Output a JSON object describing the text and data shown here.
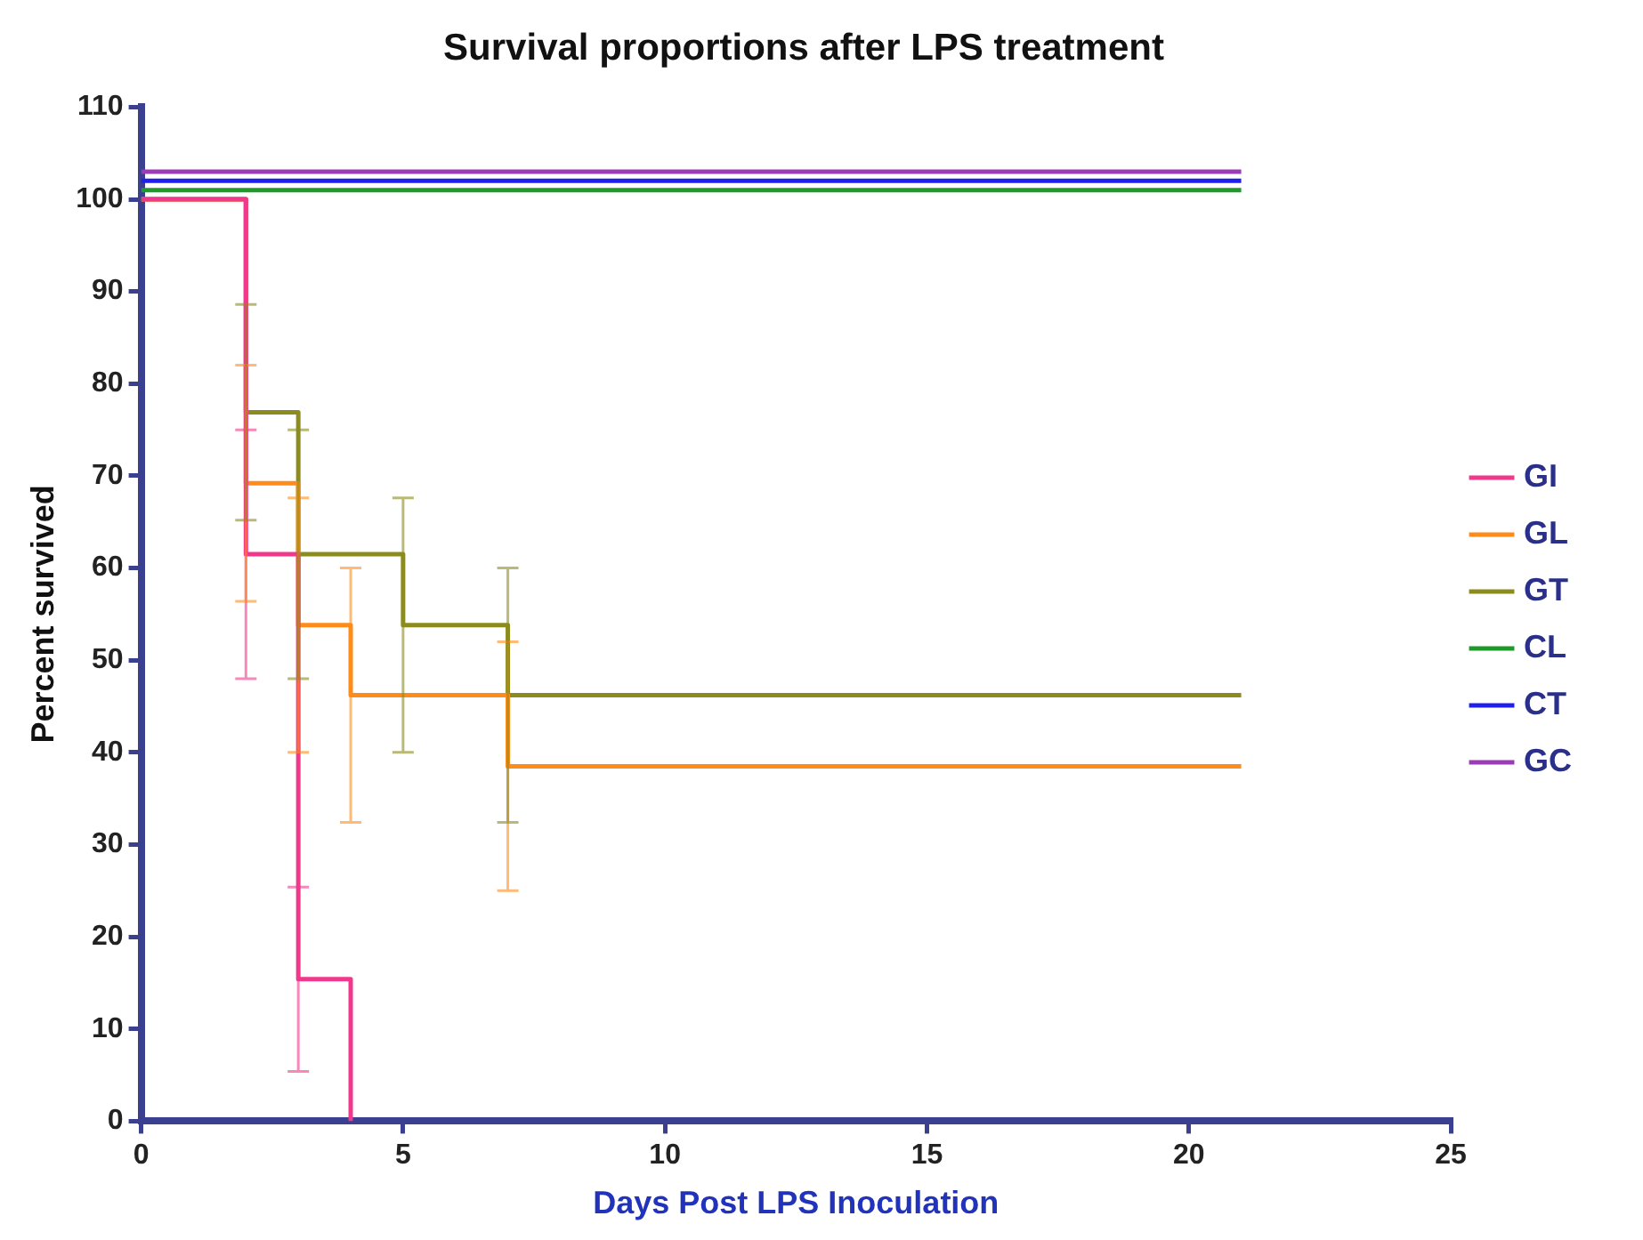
{
  "chart_data": {
    "type": "step",
    "title": "Survival proportions after LPS treatment",
    "xlabel": "Days Post LPS Inoculation",
    "ylabel": "Percent survived",
    "xlim": [
      0,
      25
    ],
    "xticks": [
      0,
      5,
      10,
      15,
      20,
      25
    ],
    "ylim": [
      0,
      110
    ],
    "yticks": [
      0,
      10,
      20,
      30,
      40,
      50,
      60,
      70,
      80,
      90,
      100,
      110
    ],
    "grid": false,
    "legend": "right",
    "marker": "none",
    "line_style": "solid",
    "series": [
      {
        "name": "GI",
        "color": "#f0388c",
        "x": [
          0,
          2,
          3,
          4
        ],
        "values": [
          100,
          61.5,
          15.4,
          0
        ],
        "errors": [
          null,
          13.5,
          10,
          null
        ]
      },
      {
        "name": "GL",
        "color": "#ff8c1a",
        "x": [
          0,
          2,
          3,
          4,
          7,
          21
        ],
        "values": [
          100,
          69.2,
          53.8,
          46.2,
          38.5,
          38.5
        ],
        "errors": [
          null,
          12.8,
          13.8,
          13.8,
          13.5,
          null
        ]
      },
      {
        "name": "GT",
        "color": "#8c8c1e",
        "x": [
          0,
          2,
          3,
          5,
          7,
          21
        ],
        "values": [
          100,
          76.9,
          61.5,
          53.8,
          46.2,
          46.2
        ],
        "errors": [
          null,
          11.7,
          13.5,
          13.8,
          13.8,
          null
        ]
      },
      {
        "name": "CL",
        "color": "#1f9a2a",
        "x": [
          0,
          21
        ],
        "values": [
          101,
          101
        ]
      },
      {
        "name": "CT",
        "color": "#2020ee",
        "x": [
          0,
          21
        ],
        "values": [
          102,
          102
        ]
      },
      {
        "name": "GC",
        "color": "#9a3cb4",
        "x": [
          0,
          21
        ],
        "values": [
          103,
          103
        ]
      }
    ]
  }
}
